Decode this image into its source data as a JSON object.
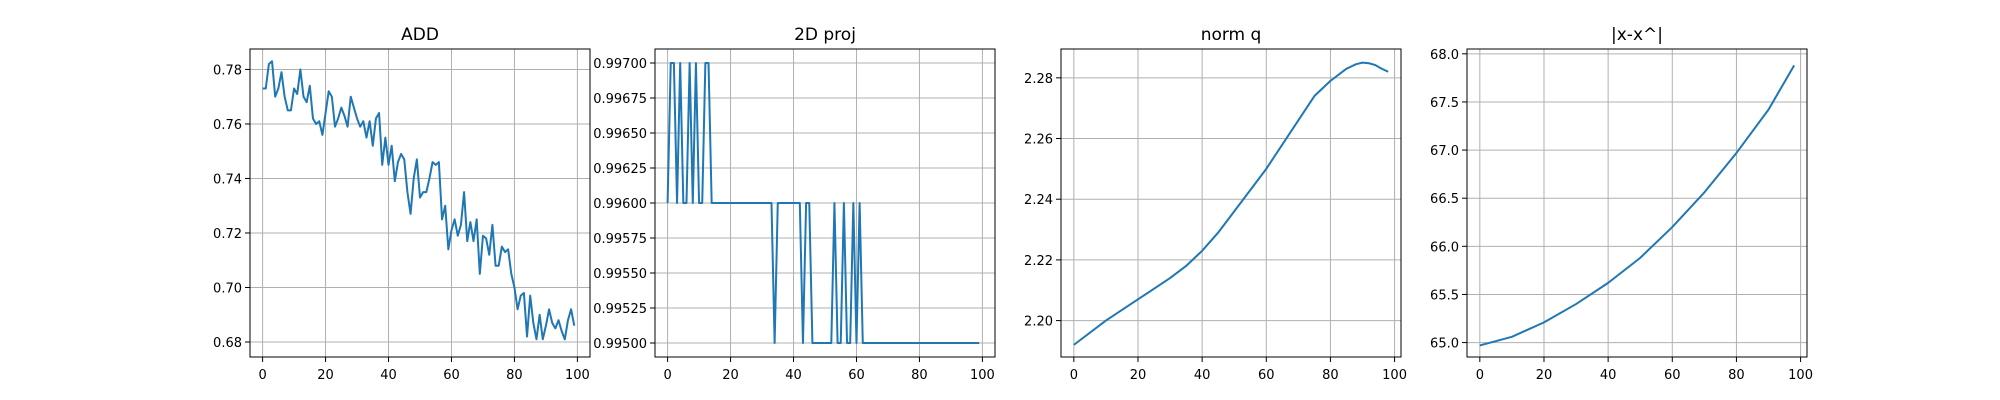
{
  "figure": {
    "line_color": "#1f77b4",
    "grid_color": "#b0b0b0",
    "axes_color": "#000000"
  },
  "chart_data": [
    {
      "type": "line",
      "title": "ADD",
      "xlabel": "",
      "ylabel": "",
      "grid": true,
      "xlim": [
        -4,
        104
      ],
      "ylim": [
        0.6745,
        0.7875
      ],
      "xticks": [
        0,
        20,
        40,
        60,
        80,
        100
      ],
      "xtick_labels": [
        "0",
        "20",
        "40",
        "60",
        "80",
        "100"
      ],
      "yticks": [
        0.68,
        0.7,
        0.72,
        0.74,
        0.76,
        0.78
      ],
      "ytick_labels": [
        "0.68",
        "0.70",
        "0.72",
        "0.74",
        "0.76",
        "0.78"
      ],
      "series": [
        {
          "x": [
            0,
            1,
            2,
            3,
            4,
            5,
            6,
            7,
            8,
            9,
            10,
            11,
            12,
            13,
            14,
            15,
            16,
            17,
            18,
            19,
            20,
            21,
            22,
            23,
            24,
            25,
            26,
            27,
            28,
            29,
            30,
            31,
            32,
            33,
            34,
            35,
            36,
            37,
            38,
            39,
            40,
            41,
            42,
            43,
            44,
            45,
            46,
            47,
            48,
            49,
            50,
            51,
            52,
            53,
            54,
            55,
            56,
            57,
            58,
            59,
            60,
            61,
            62,
            63,
            64,
            65,
            66,
            67,
            68,
            69,
            70,
            71,
            72,
            73,
            74,
            75,
            76,
            77,
            78,
            79,
            80,
            81,
            82,
            83,
            84,
            85,
            86,
            87,
            88,
            89,
            90,
            91,
            92,
            93,
            94,
            95,
            96,
            97,
            98,
            99
          ],
          "values": [
            0.773,
            0.773,
            0.782,
            0.783,
            0.77,
            0.773,
            0.779,
            0.77,
            0.765,
            0.765,
            0.773,
            0.771,
            0.78,
            0.77,
            0.768,
            0.774,
            0.762,
            0.76,
            0.761,
            0.756,
            0.764,
            0.772,
            0.77,
            0.759,
            0.762,
            0.766,
            0.763,
            0.759,
            0.77,
            0.766,
            0.762,
            0.759,
            0.761,
            0.755,
            0.761,
            0.752,
            0.762,
            0.764,
            0.745,
            0.755,
            0.745,
            0.752,
            0.739,
            0.746,
            0.749,
            0.747,
            0.735,
            0.727,
            0.74,
            0.747,
            0.733,
            0.735,
            0.735,
            0.74,
            0.746,
            0.745,
            0.746,
            0.725,
            0.73,
            0.714,
            0.721,
            0.725,
            0.719,
            0.723,
            0.735,
            0.717,
            0.724,
            0.717,
            0.725,
            0.705,
            0.719,
            0.718,
            0.712,
            0.723,
            0.708,
            0.708,
            0.715,
            0.713,
            0.714,
            0.705,
            0.7,
            0.692,
            0.697,
            0.698,
            0.682,
            0.697,
            0.687,
            0.681,
            0.69,
            0.681,
            0.686,
            0.692,
            0.687,
            0.685,
            0.688,
            0.684,
            0.681,
            0.688,
            0.692,
            0.686
          ]
        }
      ]
    },
    {
      "type": "line",
      "title": "2D proj",
      "xlabel": "",
      "ylabel": "",
      "grid": true,
      "xlim": [
        -4,
        104
      ],
      "ylim": [
        0.9949,
        0.9971
      ],
      "xticks": [
        0,
        20,
        40,
        60,
        80,
        100
      ],
      "xtick_labels": [
        "0",
        "20",
        "40",
        "60",
        "80",
        "100"
      ],
      "yticks": [
        0.995,
        0.99525,
        0.9955,
        0.99575,
        0.996,
        0.99625,
        0.9965,
        0.99675,
        0.997
      ],
      "ytick_labels": [
        "0.99500",
        "0.99525",
        "0.99550",
        "0.99575",
        "0.99600",
        "0.99625",
        "0.99650",
        "0.99675",
        "0.99700"
      ],
      "series": [
        {
          "x": [
            0,
            1,
            2,
            3,
            4,
            5,
            6,
            7,
            8,
            9,
            10,
            11,
            12,
            13,
            14,
            15,
            16,
            17,
            18,
            19,
            20,
            21,
            22,
            23,
            24,
            25,
            26,
            27,
            28,
            29,
            30,
            31,
            32,
            33,
            34,
            35,
            36,
            37,
            38,
            39,
            40,
            41,
            42,
            43,
            44,
            45,
            46,
            47,
            48,
            49,
            50,
            51,
            52,
            53,
            54,
            55,
            56,
            57,
            58,
            59,
            60,
            61,
            62,
            63,
            64,
            65,
            66,
            67,
            68,
            69,
            70,
            71,
            72,
            73,
            74,
            75,
            76,
            77,
            78,
            79,
            80,
            81,
            82,
            83,
            84,
            85,
            86,
            87,
            88,
            89,
            90,
            91,
            92,
            93,
            94,
            95,
            96,
            97,
            98,
            99
          ],
          "values": [
            0.996,
            0.997,
            0.997,
            0.996,
            0.997,
            0.996,
            0.996,
            0.997,
            0.996,
            0.997,
            0.996,
            0.996,
            0.997,
            0.997,
            0.996,
            0.996,
            0.996,
            0.996,
            0.996,
            0.996,
            0.996,
            0.996,
            0.996,
            0.996,
            0.996,
            0.996,
            0.996,
            0.996,
            0.996,
            0.996,
            0.996,
            0.996,
            0.996,
            0.996,
            0.995,
            0.996,
            0.996,
            0.996,
            0.996,
            0.996,
            0.996,
            0.996,
            0.996,
            0.995,
            0.996,
            0.996,
            0.995,
            0.995,
            0.995,
            0.995,
            0.995,
            0.995,
            0.995,
            0.996,
            0.995,
            0.995,
            0.996,
            0.995,
            0.995,
            0.996,
            0.995,
            0.996,
            0.995,
            0.995,
            0.995,
            0.995,
            0.995,
            0.995,
            0.995,
            0.995,
            0.995,
            0.995,
            0.995,
            0.995,
            0.995,
            0.995,
            0.995,
            0.995,
            0.995,
            0.995,
            0.995,
            0.995,
            0.995,
            0.995,
            0.995,
            0.995,
            0.995,
            0.995,
            0.995,
            0.995,
            0.995,
            0.995,
            0.995,
            0.995,
            0.995,
            0.995,
            0.995,
            0.995,
            0.995,
            0.995
          ]
        }
      ]
    },
    {
      "type": "line",
      "title": "norm q",
      "xlabel": "",
      "ylabel": "",
      "grid": true,
      "xlim": [
        -4,
        102
      ],
      "ylim": [
        2.188,
        2.2895
      ],
      "xticks": [
        0,
        20,
        40,
        60,
        80,
        100
      ],
      "xtick_labels": [
        "0",
        "20",
        "40",
        "60",
        "80",
        "100"
      ],
      "yticks": [
        2.2,
        2.22,
        2.24,
        2.26,
        2.28
      ],
      "ytick_labels": [
        "2.20",
        "2.22",
        "2.24",
        "2.26",
        "2.28"
      ],
      "series": [
        {
          "x": [
            0,
            10,
            20,
            30,
            35,
            40,
            45,
            50,
            55,
            60,
            65,
            70,
            75,
            80,
            85,
            88,
            90,
            92,
            94,
            96,
            98
          ],
          "values": [
            2.192,
            2.2,
            2.207,
            2.214,
            2.218,
            2.223,
            2.229,
            2.236,
            2.243,
            2.25,
            2.258,
            2.266,
            2.274,
            2.279,
            2.283,
            2.2845,
            2.285,
            2.2848,
            2.2842,
            2.283,
            2.282
          ]
        }
      ]
    },
    {
      "type": "line",
      "title": "|x-x^|",
      "xlabel": "",
      "ylabel": "",
      "grid": true,
      "xlim": [
        -4,
        102
      ],
      "ylim": [
        64.85,
        68.05
      ],
      "xticks": [
        0,
        20,
        40,
        60,
        80,
        100
      ],
      "xtick_labels": [
        "0",
        "20",
        "40",
        "60",
        "80",
        "100"
      ],
      "yticks": [
        65.0,
        65.5,
        66.0,
        66.5,
        67.0,
        67.5,
        68.0
      ],
      "ytick_labels": [
        "65.0",
        "65.5",
        "66.0",
        "66.5",
        "67.0",
        "67.5",
        "68.0"
      ],
      "series": [
        {
          "x": [
            0,
            10,
            20,
            30,
            40,
            50,
            60,
            70,
            80,
            90,
            98
          ],
          "values": [
            64.97,
            65.06,
            65.21,
            65.4,
            65.62,
            65.88,
            66.2,
            66.56,
            66.97,
            67.42,
            67.88
          ]
        }
      ]
    }
  ]
}
